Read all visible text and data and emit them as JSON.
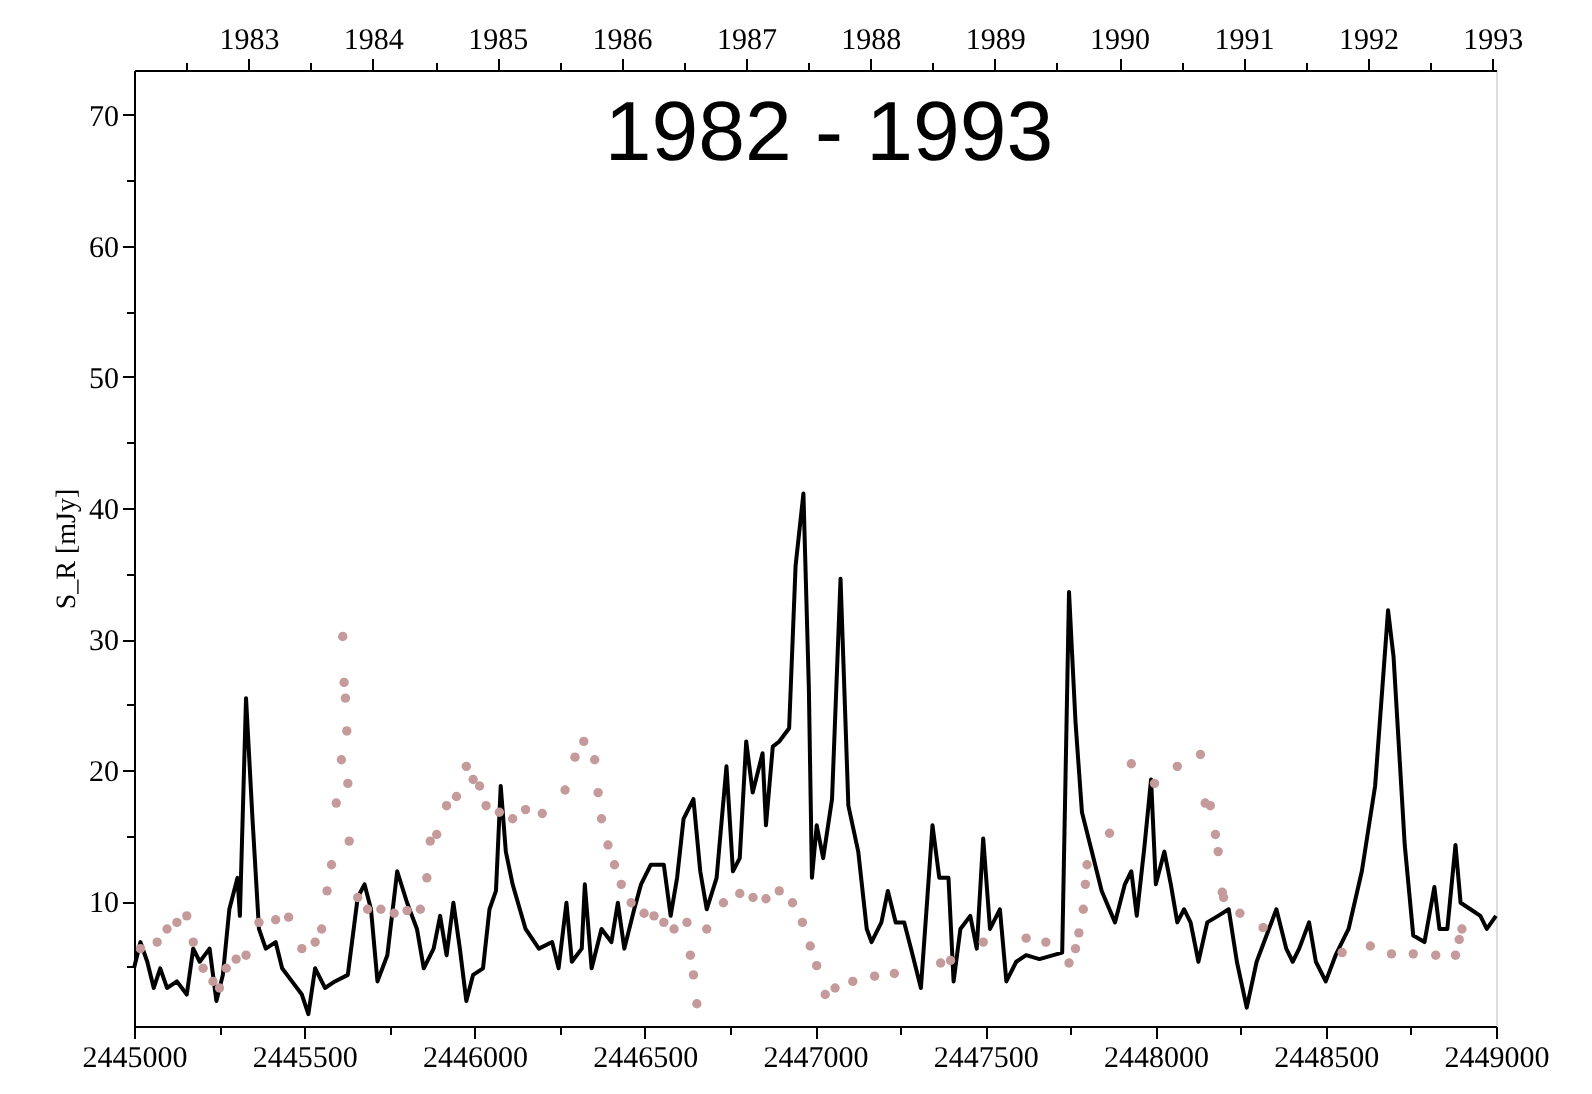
{
  "chart_data": {
    "type": "line",
    "title": "1982 - 1993",
    "ylabel": "S_R [mJy]",
    "xlim": [
      2445000,
      2449000
    ],
    "xticks": [
      2445000,
      {
        "value": 2445250,
        "label": null
      },
      2445500,
      {
        "value": 2445750,
        "label": null
      },
      2446000,
      {
        "value": 2446250,
        "label": null
      },
      2446500,
      {
        "value": 2446750,
        "label": null
      },
      2447000,
      {
        "value": 2447250,
        "label": null
      },
      2447500,
      {
        "value": 2447750,
        "label": null
      },
      2448000,
      {
        "value": 2448250,
        "label": null
      },
      2448500,
      {
        "value": 2448750,
        "label": null
      },
      2449000
    ],
    "x2lim": [
      1982.08,
      1993.03
    ],
    "x2ticks": [
      {
        "value": 1982.5,
        "label": null
      },
      1983,
      {
        "value": 1983.5,
        "label": null
      },
      1984,
      {
        "value": 1984.5,
        "label": null
      },
      1985,
      {
        "value": 1985.5,
        "label": null
      },
      1986,
      {
        "value": 1986.5,
        "label": null
      },
      1987,
      {
        "value": 1987.5,
        "label": null
      },
      1988,
      {
        "value": 1988.5,
        "label": null
      },
      1989,
      {
        "value": 1989.5,
        "label": null
      },
      1990,
      {
        "value": 1990.5,
        "label": null
      },
      1991,
      {
        "value": 1991.5,
        "label": null
      },
      1992,
      {
        "value": 1992.5,
        "label": null
      },
      1993
    ],
    "ylim": [
      0.5,
      73.4
    ],
    "yticks": [
      {
        "value": 5,
        "label": null
      },
      10,
      {
        "value": 15,
        "label": null
      },
      20,
      {
        "value": 25,
        "label": null
      },
      30,
      {
        "value": 35,
        "label": null
      },
      40,
      {
        "value": 45,
        "label": null
      },
      50,
      {
        "value": 55,
        "label": null
      },
      60,
      {
        "value": 65,
        "label": null
      },
      70
    ],
    "grid": false,
    "series": [
      {
        "type": "line",
        "color": "#000000",
        "line_style": "solid",
        "marker": "none",
        "x": [
          2445000,
          2445019,
          2445039,
          2445058,
          2445077,
          2445097,
          2445126,
          2445155,
          2445174,
          2445193,
          2445222,
          2445242,
          2445261,
          2445280,
          2445304,
          2445311,
          2445329,
          2445348,
          2445367,
          2445387,
          2445416,
          2445435,
          2445464,
          2445493,
          2445512,
          2445532,
          2445561,
          2445590,
          2445628,
          2445657,
          2445677,
          2445696,
          2445715,
          2445744,
          2445773,
          2445802,
          2445831,
          2445851,
          2445880,
          2445899,
          2445918,
          2445938,
          2445957,
          2445976,
          2445996,
          2446025,
          2446044,
          2446063,
          2446077,
          2446092,
          2446112,
          2446150,
          2446189,
          2446228,
          2446247,
          2446270,
          2446286,
          2446315,
          2446324,
          2446344,
          2446373,
          2446402,
          2446421,
          2446440,
          2446469,
          2446489,
          2446518,
          2446556,
          2446576,
          2446595,
          2446614,
          2446643,
          2446663,
          2446682,
          2446711,
          2446740,
          2446759,
          2446779,
          2446798,
          2446817,
          2446846,
          2446856,
          2446876,
          2446895,
          2446924,
          2446943,
          2446966,
          2446982,
          2446991,
          2447005,
          2447024,
          2447050,
          2447075,
          2447098,
          2447127,
          2447152,
          2447166,
          2447195,
          2447214,
          2447237,
          2447262,
          2447282,
          2447311,
          2447330,
          2447345,
          2447365,
          2447392,
          2447407,
          2447427,
          2447456,
          2447475,
          2447494,
          2447514,
          2447543,
          2447562,
          2447591,
          2447620,
          2447659,
          2447726,
          2447746,
          2447765,
          2447784,
          2447813,
          2447842,
          2447881,
          2447910,
          2447929,
          2447945,
          2447968,
          2447987,
          2448001,
          2448026,
          2448045,
          2448064,
          2448084,
          2448103,
          2448126,
          2448152,
          2448184,
          2448215,
          2448239,
          2448268,
          2448297,
          2448326,
          2448355,
          2448384,
          2448403,
          2448422,
          2448451,
          2448471,
          2448500,
          2448529,
          2448567,
          2448606,
          2448645,
          2448683,
          2448699,
          2448732,
          2448757,
          2448790,
          2448819,
          2448834,
          2448857,
          2448881,
          2448896,
          2448925,
          2448954,
          2448973,
          2449000
        ],
        "values": [
          4.9,
          6.9,
          5.4,
          3.4,
          4.9,
          3.4,
          3.9,
          2.9,
          6.4,
          5.4,
          6.4,
          2.4,
          4.4,
          9.4,
          11.8,
          8.9,
          25.5,
          16.3,
          7.9,
          6.4,
          6.9,
          4.9,
          3.9,
          2.9,
          1.4,
          4.9,
          3.4,
          3.9,
          4.4,
          10.3,
          11.3,
          9.4,
          3.9,
          5.9,
          12.3,
          9.9,
          7.9,
          4.9,
          6.4,
          8.9,
          5.9,
          9.9,
          6.4,
          2.4,
          4.4,
          4.9,
          9.4,
          10.8,
          18.8,
          13.8,
          11.3,
          7.9,
          6.4,
          6.9,
          4.9,
          9.9,
          5.4,
          6.4,
          11.3,
          4.9,
          7.9,
          6.9,
          9.9,
          6.4,
          9.4,
          11.3,
          12.8,
          12.8,
          8.9,
          11.8,
          16.3,
          17.8,
          12.3,
          9.4,
          11.8,
          20.3,
          12.3,
          13.3,
          22.2,
          18.3,
          21.3,
          15.8,
          21.8,
          22.2,
          23.2,
          35.6,
          41.1,
          26.2,
          11.8,
          15.8,
          13.3,
          17.8,
          34.6,
          17.3,
          13.8,
          7.9,
          6.9,
          8.4,
          10.8,
          8.4,
          8.4,
          6.4,
          3.4,
          10.3,
          15.8,
          11.8,
          11.8,
          3.9,
          7.9,
          8.9,
          6.4,
          14.8,
          7.9,
          9.4,
          3.9,
          5.4,
          5.9,
          5.6,
          6.1,
          33.6,
          23.7,
          16.8,
          13.8,
          10.8,
          8.4,
          11.3,
          12.3,
          8.9,
          14.3,
          19.3,
          11.3,
          13.8,
          11.3,
          8.4,
          9.4,
          8.4,
          5.4,
          8.4,
          8.9,
          9.4,
          5.4,
          1.9,
          5.4,
          7.4,
          9.4,
          6.4,
          5.4,
          6.4,
          8.4,
          5.4,
          3.9,
          5.9,
          7.9,
          12.3,
          18.8,
          32.2,
          28.7,
          14.3,
          7.4,
          6.9,
          11.1,
          7.9,
          7.9,
          14.3,
          9.9,
          9.4,
          8.9,
          7.9,
          8.9
        ]
      },
      {
        "type": "scatter",
        "color": "#c49a9a",
        "marker": "circle",
        "x": [
          2445019,
          2445068,
          2445097,
          2445126,
          2445155,
          2445174,
          2445203,
          2445232,
          2445251,
          2445271,
          2445300,
          2445329,
          2445367,
          2445416,
          2445454,
          2445493,
          2445532,
          2445551,
          2445567,
          2445580,
          2445594,
          2445609,
          2445613,
          2445617,
          2445621,
          2445625,
          2445628,
          2445632,
          2445657,
          2445686,
          2445725,
          2445764,
          2445802,
          2445841,
          2445860,
          2445870,
          2445889,
          2445918,
          2445947,
          2445976,
          2445996,
          2446015,
          2446034,
          2446073,
          2446112,
          2446150,
          2446199,
          2446266,
          2446295,
          2446321,
          2446353,
          2446363,
          2446373,
          2446392,
          2446411,
          2446431,
          2446460,
          2446498,
          2446527,
          2446556,
          2446586,
          2446624,
          2446634,
          2446643,
          2446653,
          2446682,
          2446731,
          2446779,
          2446818,
          2446856,
          2446895,
          2446934,
          2446963,
          2446986,
          2447005,
          2447030,
          2447059,
          2447111,
          2447175,
          2447233,
          2447369,
          2447398,
          2447494,
          2447620,
          2447678,
          2447746,
          2447765,
          2447775,
          2447788,
          2447794,
          2447799,
          2447865,
          2447929,
          2447997,
          2448064,
          2448132,
          2448146,
          2448161,
          2448176,
          2448184,
          2448196,
          2448200,
          2448248,
          2448316,
          2448548,
          2448631,
          2448693,
          2448757,
          2448823,
          2448881,
          2448892,
          2448900
        ],
        "values": [
          6.4,
          6.9,
          7.9,
          8.4,
          8.9,
          6.9,
          4.9,
          3.9,
          3.4,
          4.9,
          5.6,
          5.9,
          8.4,
          8.6,
          8.8,
          6.4,
          6.9,
          7.9,
          10.8,
          12.8,
          17.5,
          20.8,
          30.2,
          26.7,
          25.5,
          23.0,
          19.0,
          14.6,
          10.3,
          9.4,
          9.4,
          9.1,
          9.3,
          9.4,
          11.8,
          14.6,
          15.1,
          17.3,
          18.0,
          20.3,
          19.3,
          18.8,
          17.3,
          16.8,
          16.3,
          17.0,
          16.7,
          18.5,
          21.0,
          22.2,
          20.8,
          18.3,
          16.3,
          14.3,
          12.8,
          11.3,
          9.9,
          9.1,
          8.9,
          8.4,
          7.9,
          8.4,
          5.9,
          4.4,
          2.2,
          7.9,
          9.9,
          10.6,
          10.3,
          10.2,
          10.8,
          9.9,
          8.4,
          6.6,
          5.1,
          2.9,
          3.4,
          3.9,
          4.3,
          4.5,
          5.3,
          5.5,
          6.9,
          7.2,
          6.9,
          5.3,
          6.4,
          7.6,
          9.4,
          11.3,
          12.8,
          15.2,
          20.5,
          19.0,
          20.3,
          21.2,
          17.5,
          17.3,
          15.1,
          13.8,
          10.7,
          10.3,
          9.1,
          8.0,
          6.1,
          6.6,
          6.0,
          6.0,
          5.9,
          5.9,
          7.1,
          7.9
        ]
      }
    ]
  }
}
